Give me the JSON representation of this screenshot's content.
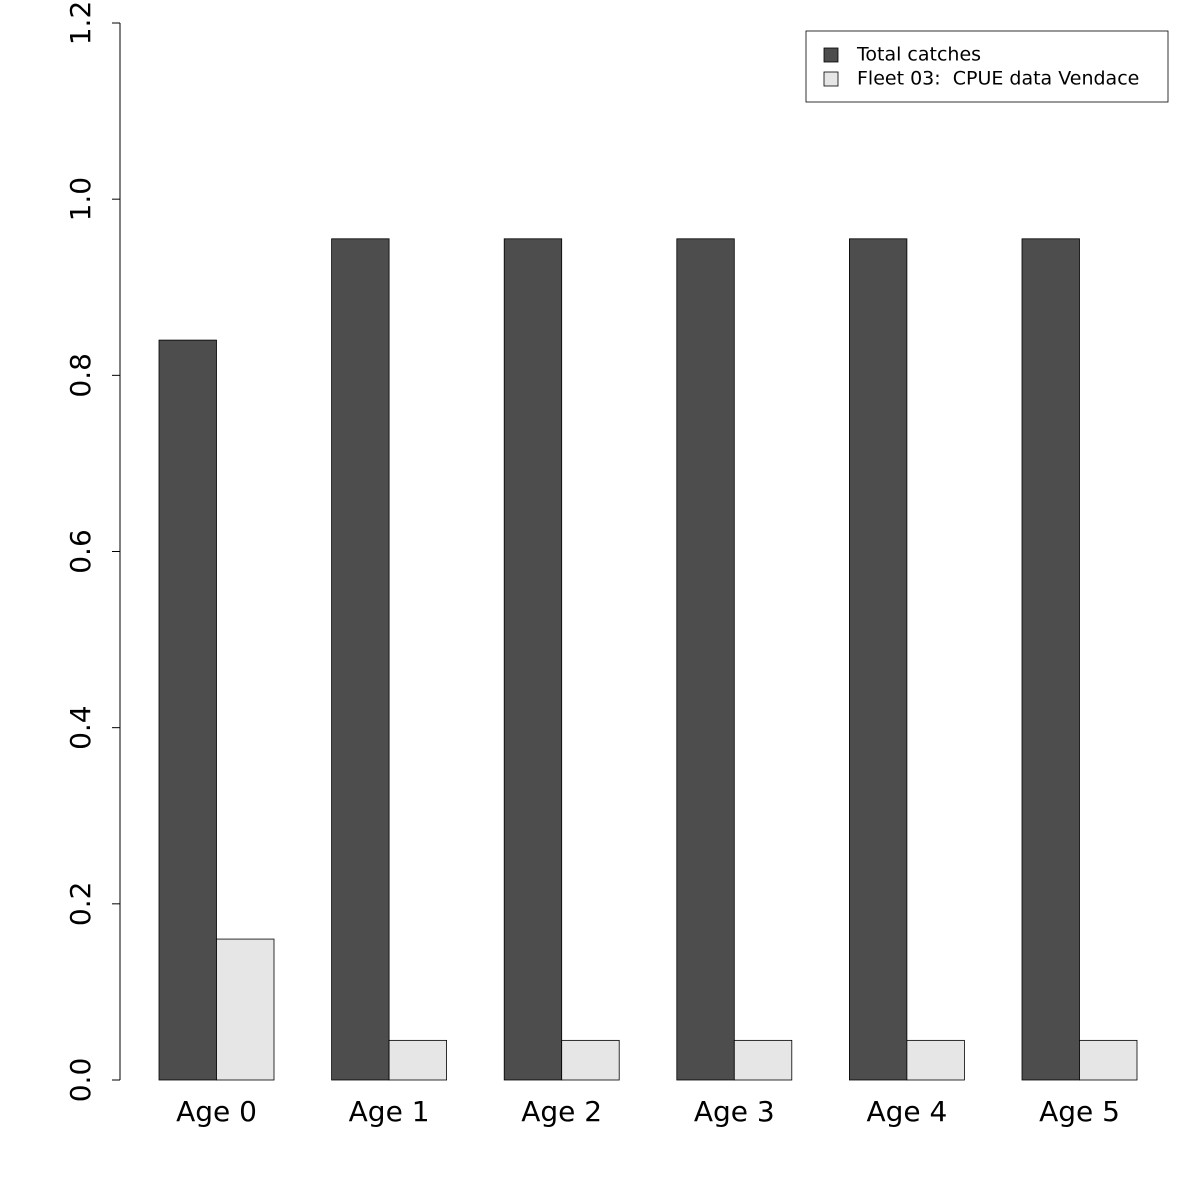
{
  "chart_data": {
    "type": "bar",
    "categories": [
      "Age 0",
      "Age 1",
      "Age 2",
      "Age 3",
      "Age 4",
      "Age 5"
    ],
    "series": [
      {
        "name": "Total catches",
        "color": "#4d4d4d",
        "values": [
          0.84,
          0.955,
          0.955,
          0.955,
          0.955,
          0.955
        ]
      },
      {
        "name": "Fleet 03:  CPUE data Vendace",
        "color": "#e6e6e6",
        "values": [
          0.16,
          0.045,
          0.045,
          0.045,
          0.045,
          0.045
        ]
      }
    ],
    "ylim": [
      0,
      1.2
    ],
    "yticks": [
      {
        "value": 0,
        "label": "0.0"
      },
      0.2,
      0.4,
      0.6,
      0.8,
      {
        "value": 1,
        "label": "1.0"
      },
      1.2
    ],
    "legend": "topright"
  }
}
